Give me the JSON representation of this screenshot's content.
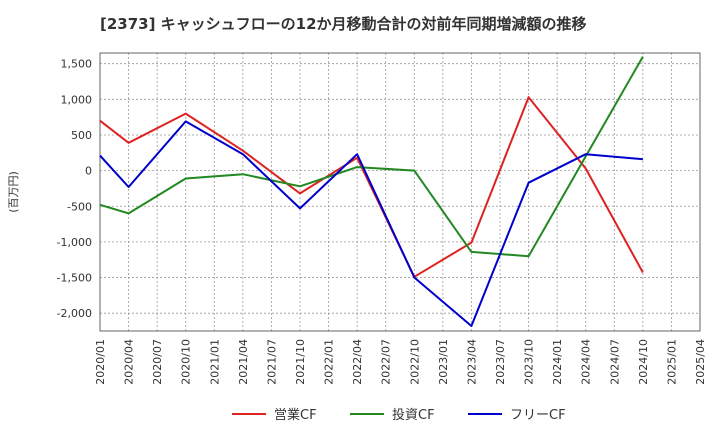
{
  "chart_data": {
    "type": "line",
    "title": "[2373]  キャッシュフローの12か月移動合計の対前年同期増減額の推移",
    "ylabel": "(百万円)",
    "xlabel": "",
    "ylim": [
      -2250,
      1650
    ],
    "yticks": [
      1500,
      1000,
      500,
      0,
      -500,
      -1000,
      -1500,
      -2000
    ],
    "ytick_labels": [
      "1,500",
      "1,000",
      "500",
      "0",
      "-500",
      "-1,000",
      "-1,500",
      "-2,000"
    ],
    "categories": [
      "2020/01",
      "2020/04",
      "2020/07",
      "2020/10",
      "2021/01",
      "2021/04",
      "2021/07",
      "2021/10",
      "2022/01",
      "2022/04",
      "2022/07",
      "2022/10",
      "2023/01",
      "2023/04",
      "2023/07",
      "2023/10",
      "2024/01",
      "2024/04",
      "2024/07",
      "2024/10",
      "2025/01",
      "2025/04"
    ],
    "series": [
      {
        "name": "営業CF",
        "color": "#dd2222",
        "values": [
          700,
          390,
          null,
          800,
          null,
          280,
          null,
          -320,
          null,
          180,
          null,
          -1490,
          null,
          -1010,
          null,
          1030,
          null,
          30,
          null,
          -1430,
          null,
          null
        ]
      },
      {
        "name": "投資CF",
        "color": "#228822",
        "values": [
          -480,
          -600,
          null,
          -110,
          null,
          -50,
          null,
          -220,
          null,
          50,
          null,
          0,
          null,
          -1140,
          null,
          -1200,
          null,
          200,
          null,
          1600,
          null,
          null
        ]
      },
      {
        "name": "フリーCF",
        "color": "#0000cc",
        "values": [
          210,
          -230,
          null,
          690,
          null,
          230,
          null,
          -530,
          null,
          230,
          null,
          -1500,
          null,
          -2180,
          null,
          -170,
          null,
          230,
          null,
          160,
          null,
          null
        ]
      }
    ]
  }
}
